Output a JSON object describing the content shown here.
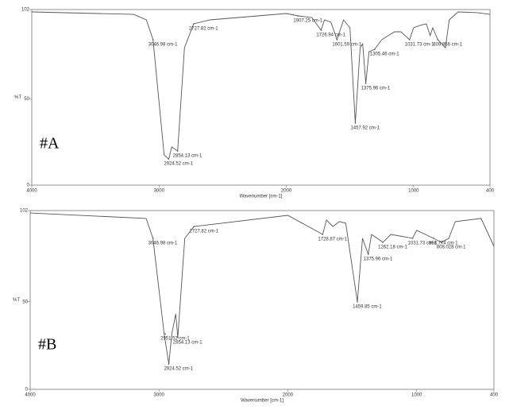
{
  "chart_data": [
    {
      "type": "line",
      "label": "#A",
      "x_label": "Wavenumber [cm-1]",
      "y_label": "%T",
      "xlim": [
        4000,
        400
      ],
      "ylim": [
        0,
        102
      ],
      "xticks": [
        4000,
        3000,
        2000,
        1000,
        400
      ],
      "yticks": [
        0,
        50,
        102
      ],
      "series": [
        {
          "color": "#555555",
          "x": [
            4000,
            3200,
            3100,
            3047,
            2960,
            2924,
            2900,
            2854,
            2800,
            2728,
            2600,
            2000,
            1907,
            1800,
            1727,
            1700,
            1650,
            1602,
            1550,
            1500,
            1458,
            1420,
            1400,
            1376,
            1350,
            1306,
            1250,
            1200,
            1150,
            1100,
            1032,
            1000,
            950,
            900,
            870,
            850,
            810,
            750,
            720,
            650,
            500,
            400
          ],
          "values": [
            100.6,
            99.2,
            96,
            84.5,
            17.5,
            15.2,
            22.2,
            19.8,
            79.8,
            93.7,
            96,
            99.7,
            98.3,
            97.4,
            90,
            96,
            94.6,
            84.5,
            96,
            91.4,
            36,
            79.8,
            82.1,
            59.1,
            77.5,
            78.9,
            84.5,
            86.8,
            89.1,
            89.1,
            84.5,
            91.4,
            92.8,
            93.7,
            86.8,
            91.4,
            84.5,
            79.8,
            96,
            100.6,
            100.2,
            99.2
          ]
        }
      ],
      "annotations": [
        {
          "text": "3046.98 cm-1",
          "x": 3046.98,
          "y": 84.5
        },
        {
          "text": "2727.82 cm-1",
          "x": 2727.82,
          "y": 93.7
        },
        {
          "text": "2924.52 cm-1",
          "x": 2924.52,
          "y": 15.2
        },
        {
          "text": "2854.13 cm-1",
          "x": 2854.13,
          "y": 19.8
        },
        {
          "text": "1907.25 cm-1",
          "x": 1907.25,
          "y": 98.3
        },
        {
          "text": "1726.94 cm-1",
          "x": 1726.94,
          "y": 90
        },
        {
          "text": "1601.59 cm-1",
          "x": 1601.59,
          "y": 84.5
        },
        {
          "text": "1457.92 cm-1",
          "x": 1457.92,
          "y": 36
        },
        {
          "text": "1375.96 cm-1",
          "x": 1375.96,
          "y": 59.1
        },
        {
          "text": "1305.46 cm-1",
          "x": 1305.46,
          "y": 78.9
        },
        {
          "text": "1031.73 cm-1",
          "x": 1031.73,
          "y": 84.5
        },
        {
          "text": "809.956 cm-1",
          "x": 809.956,
          "y": 84.5
        }
      ]
    },
    {
      "type": "line",
      "label": "#B",
      "x_label": "Wavenumber [cm-1]",
      "y_label": "%T",
      "xlim": [
        4000,
        400
      ],
      "ylim": [
        0,
        102
      ],
      "xticks": [
        4000,
        3000,
        2000,
        1000,
        400
      ],
      "yticks": [
        0,
        50,
        102
      ],
      "series": [
        {
          "color": "#555555",
          "x": [
            4000,
            3100,
            3047,
            2960,
            2924,
            2900,
            2870,
            2854,
            2800,
            2728,
            2000,
            1729,
            1700,
            1650,
            1600,
            1550,
            1460,
            1420,
            1376,
            1350,
            1262,
            1200,
            1032,
            1000,
            870,
            808,
            750,
            700,
            500,
            400
          ],
          "values": [
            100.6,
            97.5,
            86.2,
            31.7,
            14.5,
            31.7,
            43.1,
            29.5,
            86.2,
            92.9,
            99.3,
            88.4,
            96.6,
            92.9,
            95.7,
            94.8,
            49.9,
            86.2,
            77.1,
            88.4,
            83.9,
            88.4,
            86.2,
            90.7,
            86.2,
            83.9,
            86.2,
            95.7,
            97.5,
            81.6
          ]
        }
      ],
      "annotations": [
        {
          "text": "3046.98 cm-1",
          "x": 3046.98,
          "y": 86.2
        },
        {
          "text": "2727.82 cm-1",
          "x": 2727.82,
          "y": 92.9
        },
        {
          "text": "2951.52 cm-1",
          "x": 2951.52,
          "y": 31.7
        },
        {
          "text": "2854.13 cm-1",
          "x": 2854.13,
          "y": 29.5
        },
        {
          "text": "2924.52 cm-1",
          "x": 2924.52,
          "y": 14.5
        },
        {
          "text": "1728.87 cm-1",
          "x": 1728.87,
          "y": 88.4
        },
        {
          "text": "1459.85 cm-1",
          "x": 1459.85,
          "y": 49.9
        },
        {
          "text": "1375.96 cm-1",
          "x": 1375.96,
          "y": 77.1
        },
        {
          "text": "1262.18 cm-1",
          "x": 1262.18,
          "y": 83.9
        },
        {
          "text": "1031.73 cm-1",
          "x": 1031.73,
          "y": 86.2
        },
        {
          "text": "868.774 cm-1",
          "x": 868.774,
          "y": 86.2
        },
        {
          "text": "808.028 cm-1",
          "x": 808.028,
          "y": 83.9
        }
      ]
    }
  ]
}
